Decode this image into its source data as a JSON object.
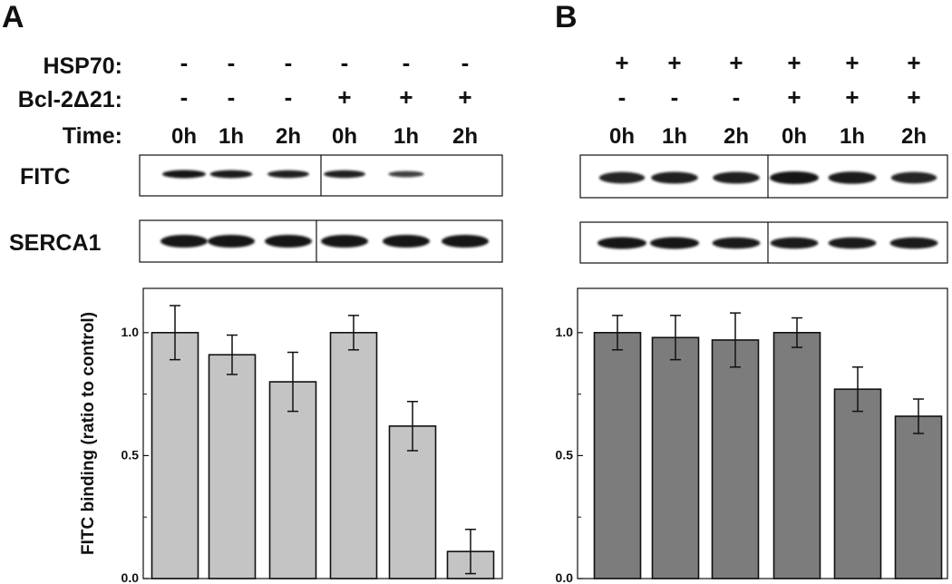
{
  "panel_a": {
    "letter": "A",
    "row_labels": [
      "HSP70:",
      "Bcl-2Δ21:",
      "Time:"
    ],
    "hsp70": [
      "-",
      "-",
      "-",
      "-",
      "-",
      "-"
    ],
    "bcl2": [
      "-",
      "-",
      "-",
      "+",
      "+",
      "+"
    ],
    "time": [
      "0h",
      "1h",
      "2h",
      "0h",
      "1h",
      "2h"
    ],
    "blot_labels": [
      "FITC",
      "SERCA1"
    ],
    "fitc_band_intensity": [
      1.0,
      0.95,
      0.9,
      0.9,
      0.6,
      0.0
    ],
    "serca1_band_intensity": [
      1.0,
      1.0,
      1.0,
      1.0,
      1.0,
      1.0
    ]
  },
  "panel_b": {
    "letter": "B",
    "hsp70": [
      "+",
      "+",
      "+",
      "+",
      "+",
      "+"
    ],
    "bcl2": [
      "-",
      "-",
      "-",
      "+",
      "+",
      "+"
    ],
    "time": [
      "0h",
      "1h",
      "2h",
      "0h",
      "1h",
      "2h"
    ],
    "fitc_band_intensity": [
      0.85,
      0.9,
      0.9,
      1.0,
      0.95,
      0.85
    ],
    "serca1_band_intensity": [
      1.0,
      1.0,
      0.95,
      0.95,
      0.95,
      0.95
    ]
  },
  "colors": {
    "bar_a": "#c4c4c4",
    "bar_b": "#7c7c7c",
    "blot_band": "#161616"
  },
  "chart_data": [
    {
      "type": "bar",
      "panel": "A",
      "categories": [
        "0h",
        "1h",
        "2h",
        "0h",
        "1h",
        "2h"
      ],
      "values": [
        1.0,
        0.91,
        0.8,
        1.0,
        0.62,
        0.11
      ],
      "errors": [
        0.11,
        0.08,
        0.12,
        0.07,
        0.1,
        0.09
      ],
      "title": "",
      "xlabel": "",
      "ylabel": "FITC binding (ratio to control)",
      "ylim": [
        0,
        1.18
      ],
      "yticks": [
        0.0,
        0.5,
        1.0
      ],
      "ytick_labels": [
        "0.0",
        "0.5",
        "1.0"
      ],
      "grid": false
    },
    {
      "type": "bar",
      "panel": "B",
      "categories": [
        "0h",
        "1h",
        "2h",
        "0h",
        "1h",
        "2h"
      ],
      "values": [
        1.0,
        0.98,
        0.97,
        1.0,
        0.77,
        0.66
      ],
      "errors": [
        0.07,
        0.09,
        0.11,
        0.06,
        0.09,
        0.07
      ],
      "title": "",
      "xlabel": "",
      "ylabel": "",
      "ylim": [
        0,
        1.18
      ],
      "yticks": [
        0.0,
        0.5,
        1.0
      ],
      "ytick_labels": [
        "0.0",
        "0.5",
        "1.0"
      ],
      "grid": false
    }
  ]
}
